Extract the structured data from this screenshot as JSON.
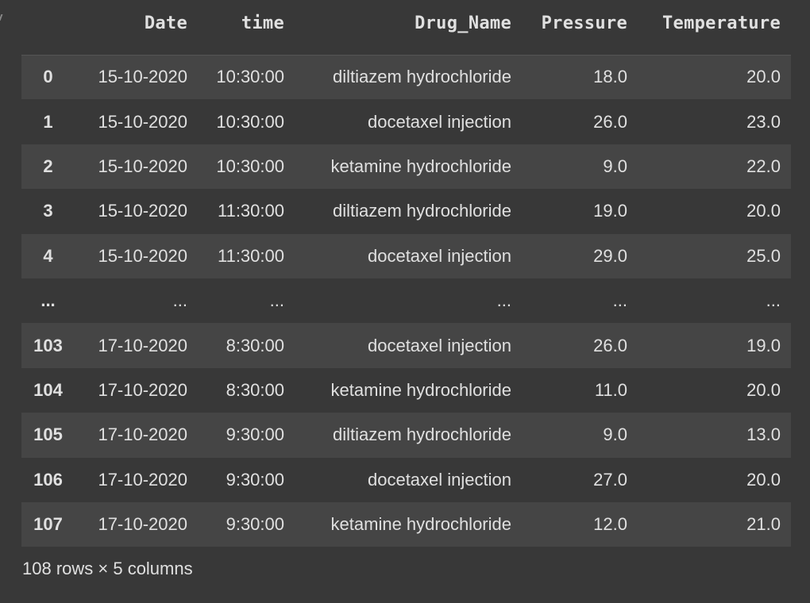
{
  "table": {
    "columns": [
      "",
      "Date",
      "time",
      "Drug_Name",
      "Pressure",
      "Temperature"
    ],
    "rows": [
      [
        "0",
        "15-10-2020",
        "10:30:00",
        "diltiazem hydrochloride",
        "18.0",
        "20.0"
      ],
      [
        "1",
        "15-10-2020",
        "10:30:00",
        "docetaxel injection",
        "26.0",
        "23.0"
      ],
      [
        "2",
        "15-10-2020",
        "10:30:00",
        "ketamine hydrochloride",
        "9.0",
        "22.0"
      ],
      [
        "3",
        "15-10-2020",
        "11:30:00",
        "diltiazem hydrochloride",
        "19.0",
        "20.0"
      ],
      [
        "4",
        "15-10-2020",
        "11:30:00",
        "docetaxel injection",
        "29.0",
        "25.0"
      ],
      [
        "...",
        "...",
        "...",
        "...",
        "...",
        "..."
      ],
      [
        "103",
        "17-10-2020",
        "8:30:00",
        "docetaxel injection",
        "26.0",
        "19.0"
      ],
      [
        "104",
        "17-10-2020",
        "8:30:00",
        "ketamine hydrochloride",
        "11.0",
        "20.0"
      ],
      [
        "105",
        "17-10-2020",
        "9:30:00",
        "diltiazem hydrochloride",
        "9.0",
        "13.0"
      ],
      [
        "106",
        "17-10-2020",
        "9:30:00",
        "docetaxel injection",
        "27.0",
        "20.0"
      ],
      [
        "107",
        "17-10-2020",
        "9:30:00",
        "ketamine hydrochloride",
        "12.0",
        "21.0"
      ]
    ]
  },
  "footer": "108 rows × 5 columns"
}
